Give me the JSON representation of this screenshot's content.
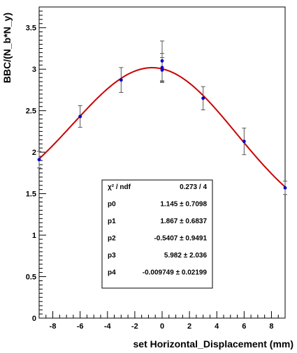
{
  "chart_data": {
    "type": "scatter",
    "title": "",
    "xlabel": "set Horizontal_Displacement (mm)",
    "ylabel": "BBC/(N_b*N_y)",
    "xlim": [
      -9,
      9
    ],
    "ylim": [
      0,
      3.75
    ],
    "x_ticks": [
      -8,
      -6,
      -4,
      -2,
      0,
      2,
      4,
      6,
      8
    ],
    "y_ticks": [
      0,
      0.5,
      1,
      1.5,
      2,
      2.5,
      3,
      3.5
    ],
    "x_tick_labels": [
      "-8",
      "-6",
      "-4",
      "-2",
      "0",
      "2",
      "4",
      "6",
      "8"
    ],
    "y_tick_labels": [
      "0",
      "0.5",
      "1",
      "1.5",
      "2",
      "2.5",
      "3",
      "3.5"
    ],
    "grid": false,
    "points": [
      {
        "x": -9,
        "y": 1.91,
        "err": 0.1
      },
      {
        "x": -6,
        "y": 2.43,
        "err": 0.13
      },
      {
        "x": -3,
        "y": 2.87,
        "err": 0.15
      },
      {
        "x": 0,
        "y": 3.1,
        "err": 0.24
      },
      {
        "x": 0,
        "y": 3.02,
        "err": 0.17
      },
      {
        "x": 0,
        "y": 2.99,
        "err": 0.15
      },
      {
        "x": 3,
        "y": 2.65,
        "err": 0.14
      },
      {
        "x": 6,
        "y": 2.13,
        "err": 0.16
      },
      {
        "x": 9,
        "y": 1.57,
        "err": 0.08
      }
    ],
    "point_color": "#0000cc",
    "error_color": "#555555",
    "fit": {
      "function": "gaussian_plus_linear",
      "p0": 1.145,
      "p1": 1.867,
      "p2": -0.5407,
      "p3": 5.982,
      "p4": -0.009749,
      "color": "#cc0000"
    },
    "stats_box": {
      "placement": "lower-center",
      "rows": [
        {
          "label": "χ² / ndf",
          "value": "0.273 / 4"
        },
        {
          "label": "p0",
          "value": "1.145 ± 0.7098"
        },
        {
          "label": "p1",
          "value": "1.867 ± 0.6837"
        },
        {
          "label": "p2",
          "value": "-0.5407 ± 0.9491"
        },
        {
          "label": "p3",
          "value": "5.982 ± 2.036"
        },
        {
          "label": "p4",
          "value": "-0.009749 ± 0.02199"
        }
      ]
    }
  }
}
